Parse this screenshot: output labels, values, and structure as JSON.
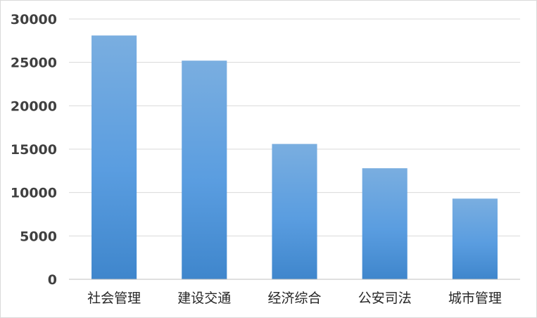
{
  "chart_data": {
    "type": "bar",
    "title": "",
    "xlabel": "",
    "ylabel": "",
    "categories": [
      "社会管理",
      "建设交通",
      "经济综合",
      "公安司法",
      "城市管理"
    ],
    "values": [
      28100,
      25200,
      15600,
      12800,
      9300
    ],
    "ylim": [
      0,
      30000
    ],
    "yticks": [
      0,
      5000,
      10000,
      15000,
      20000,
      25000,
      30000
    ],
    "grid": true,
    "legend": "none",
    "colors": {
      "bar_top": "#7aaee0",
      "bar_mid": "#5a9de0",
      "bar_bottom": "#3f86cc",
      "grid": "#d9d9d9",
      "axis": "#bfbfbf"
    }
  }
}
